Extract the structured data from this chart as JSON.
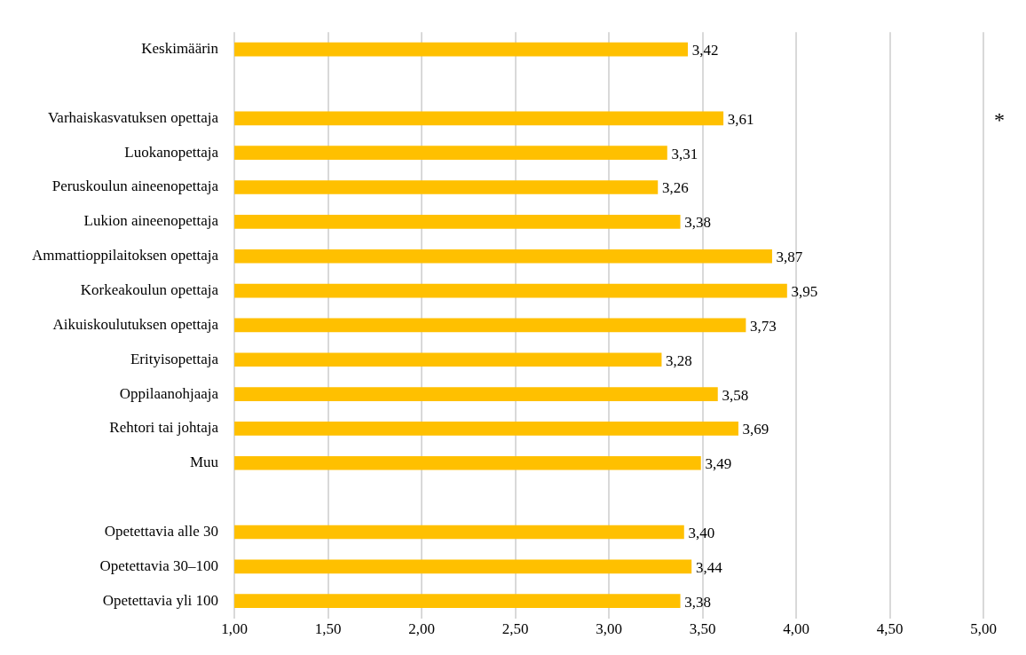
{
  "chart_data": {
    "type": "bar",
    "orientation": "horizontal",
    "categories": [
      "Keskimäärin",
      null,
      "Varhaiskasvatuksen opettaja",
      "Luokanopettaja",
      "Peruskoulun aineenopettaja",
      "Lukion aineenopettaja",
      "Ammattioppilaitoksen opettaja",
      "Korkeakoulun opettaja",
      "Aikuiskoulutuksen opettaja",
      "Erityisopettaja",
      "Oppilaanohjaaja",
      "Rehtori tai johtaja",
      "Muu",
      null,
      "Opetettavia alle 30",
      "Opetettavia 30–100",
      "Opetettavia yli 100"
    ],
    "values": [
      3.42,
      null,
      3.61,
      3.31,
      3.26,
      3.38,
      3.87,
      3.95,
      3.73,
      3.28,
      3.58,
      3.69,
      3.49,
      null,
      3.4,
      3.44,
      3.38
    ],
    "value_labels": [
      "3,42",
      null,
      "3,61",
      "3,31",
      "3,26",
      "3,38",
      "3,87",
      "3,95",
      "3,73",
      "3,28",
      "3,58",
      "3,69",
      "3,49",
      null,
      "3,40",
      "3,44",
      "3,38"
    ],
    "color": "#ffc000",
    "xlim": [
      1,
      5
    ],
    "xticks": [
      {
        "value": 1,
        "label": "1,00"
      },
      {
        "value": 1.5,
        "label": "1,50"
      },
      {
        "value": 2,
        "label": "2,00"
      },
      {
        "value": 2.5,
        "label": "2,50"
      },
      {
        "value": 3,
        "label": "3,00"
      },
      {
        "value": 3.5,
        "label": "3,50"
      },
      {
        "value": 4,
        "label": "4,00"
      },
      {
        "value": 4.5,
        "label": "4,50"
      },
      {
        "value": 5,
        "label": "5,00"
      }
    ],
    "grid": "x",
    "legend": false,
    "annotations": [
      "*"
    ]
  }
}
